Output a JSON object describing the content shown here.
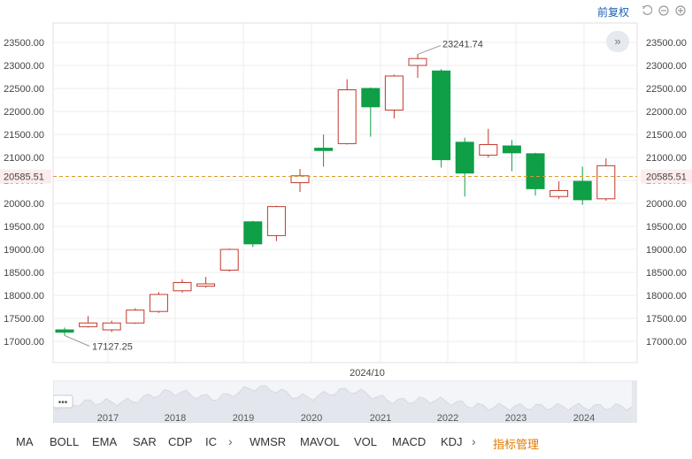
{
  "toolbar": {
    "adjust_label": "前复权"
  },
  "chart_data": {
    "type": "candlestick",
    "ylim": [
      16750,
      23850
    ],
    "y_ticks": [
      17000,
      17500,
      18000,
      18500,
      19000,
      19500,
      20000,
      20500,
      21000,
      21500,
      22000,
      22500,
      23000,
      23500
    ],
    "y_tick_labels": [
      "17000.00",
      "17500.00",
      "18000.00",
      "18500.00",
      "19000.00",
      "19500.00",
      "20000.00",
      "20500.00",
      "21000.00",
      "21500.00",
      "22000.00",
      "22500.00",
      "23000.00",
      "23500.00"
    ],
    "current_price": 20585.51,
    "current_price_label": "20585.51",
    "max_label": "23241.74",
    "min_label": "17127.25",
    "x_label": "2024/10",
    "candles": [
      {
        "open": 17250,
        "high": 17300,
        "low": 17127.25,
        "close": 17200
      },
      {
        "open": 17320,
        "high": 17550,
        "low": 17300,
        "close": 17400
      },
      {
        "open": 17250,
        "high": 17450,
        "low": 17200,
        "close": 17400
      },
      {
        "open": 17400,
        "high": 17720,
        "low": 17380,
        "close": 17680
      },
      {
        "open": 17650,
        "high": 18070,
        "low": 17620,
        "close": 18020
      },
      {
        "open": 18100,
        "high": 18350,
        "low": 18060,
        "close": 18280
      },
      {
        "open": 18200,
        "high": 18400,
        "low": 18170,
        "close": 18250
      },
      {
        "open": 18550,
        "high": 19020,
        "low": 18520,
        "close": 19000
      },
      {
        "open": 19600,
        "high": 19620,
        "low": 19050,
        "close": 19120
      },
      {
        "open": 19300,
        "high": 19950,
        "low": 19180,
        "close": 19930
      },
      {
        "open": 20450,
        "high": 20750,
        "low": 20250,
        "close": 20600
      },
      {
        "open": 21200,
        "high": 21500,
        "low": 20800,
        "close": 21150
      },
      {
        "open": 21300,
        "high": 22700,
        "low": 21280,
        "close": 22470
      },
      {
        "open": 22500,
        "high": 22520,
        "low": 21450,
        "close": 22100
      },
      {
        "open": 22030,
        "high": 22800,
        "low": 21850,
        "close": 22770
      },
      {
        "open": 23000,
        "high": 23241.74,
        "low": 22730,
        "close": 23150
      },
      {
        "open": 22880,
        "high": 22920,
        "low": 20780,
        "close": 20950
      },
      {
        "open": 21330,
        "high": 21430,
        "low": 20150,
        "close": 20660
      },
      {
        "open": 21050,
        "high": 21620,
        "low": 21000,
        "close": 21280
      },
      {
        "open": 21250,
        "high": 21380,
        "low": 20700,
        "close": 21100
      },
      {
        "open": 21080,
        "high": 21100,
        "low": 20170,
        "close": 20320
      },
      {
        "open": 20150,
        "high": 20480,
        "low": 20100,
        "close": 20280
      },
      {
        "open": 20480,
        "high": 20800,
        "low": 19970,
        "close": 20080
      },
      {
        "open": 20100,
        "high": 20980,
        "low": 20060,
        "close": 20820
      }
    ],
    "colors": {
      "up": "#c0392b",
      "down": "#0e9f47",
      "price_line": "#d99a2b",
      "price_tag": "#e0314b",
      "grid": "#eeeeee"
    }
  },
  "navigator": {
    "years": [
      "2017",
      "2018",
      "2019",
      "2020",
      "2021",
      "2022",
      "2023",
      "2024"
    ],
    "handle_label": "•••"
  },
  "tabs": [
    "MA",
    "BOLL",
    "EMA",
    "SAR",
    "CDP",
    "IC",
    "WMSR",
    "MAVOL",
    "VOL",
    "MACD",
    "KDJ"
  ],
  "manage_label": "指标管理",
  "collapse_icon": "»"
}
